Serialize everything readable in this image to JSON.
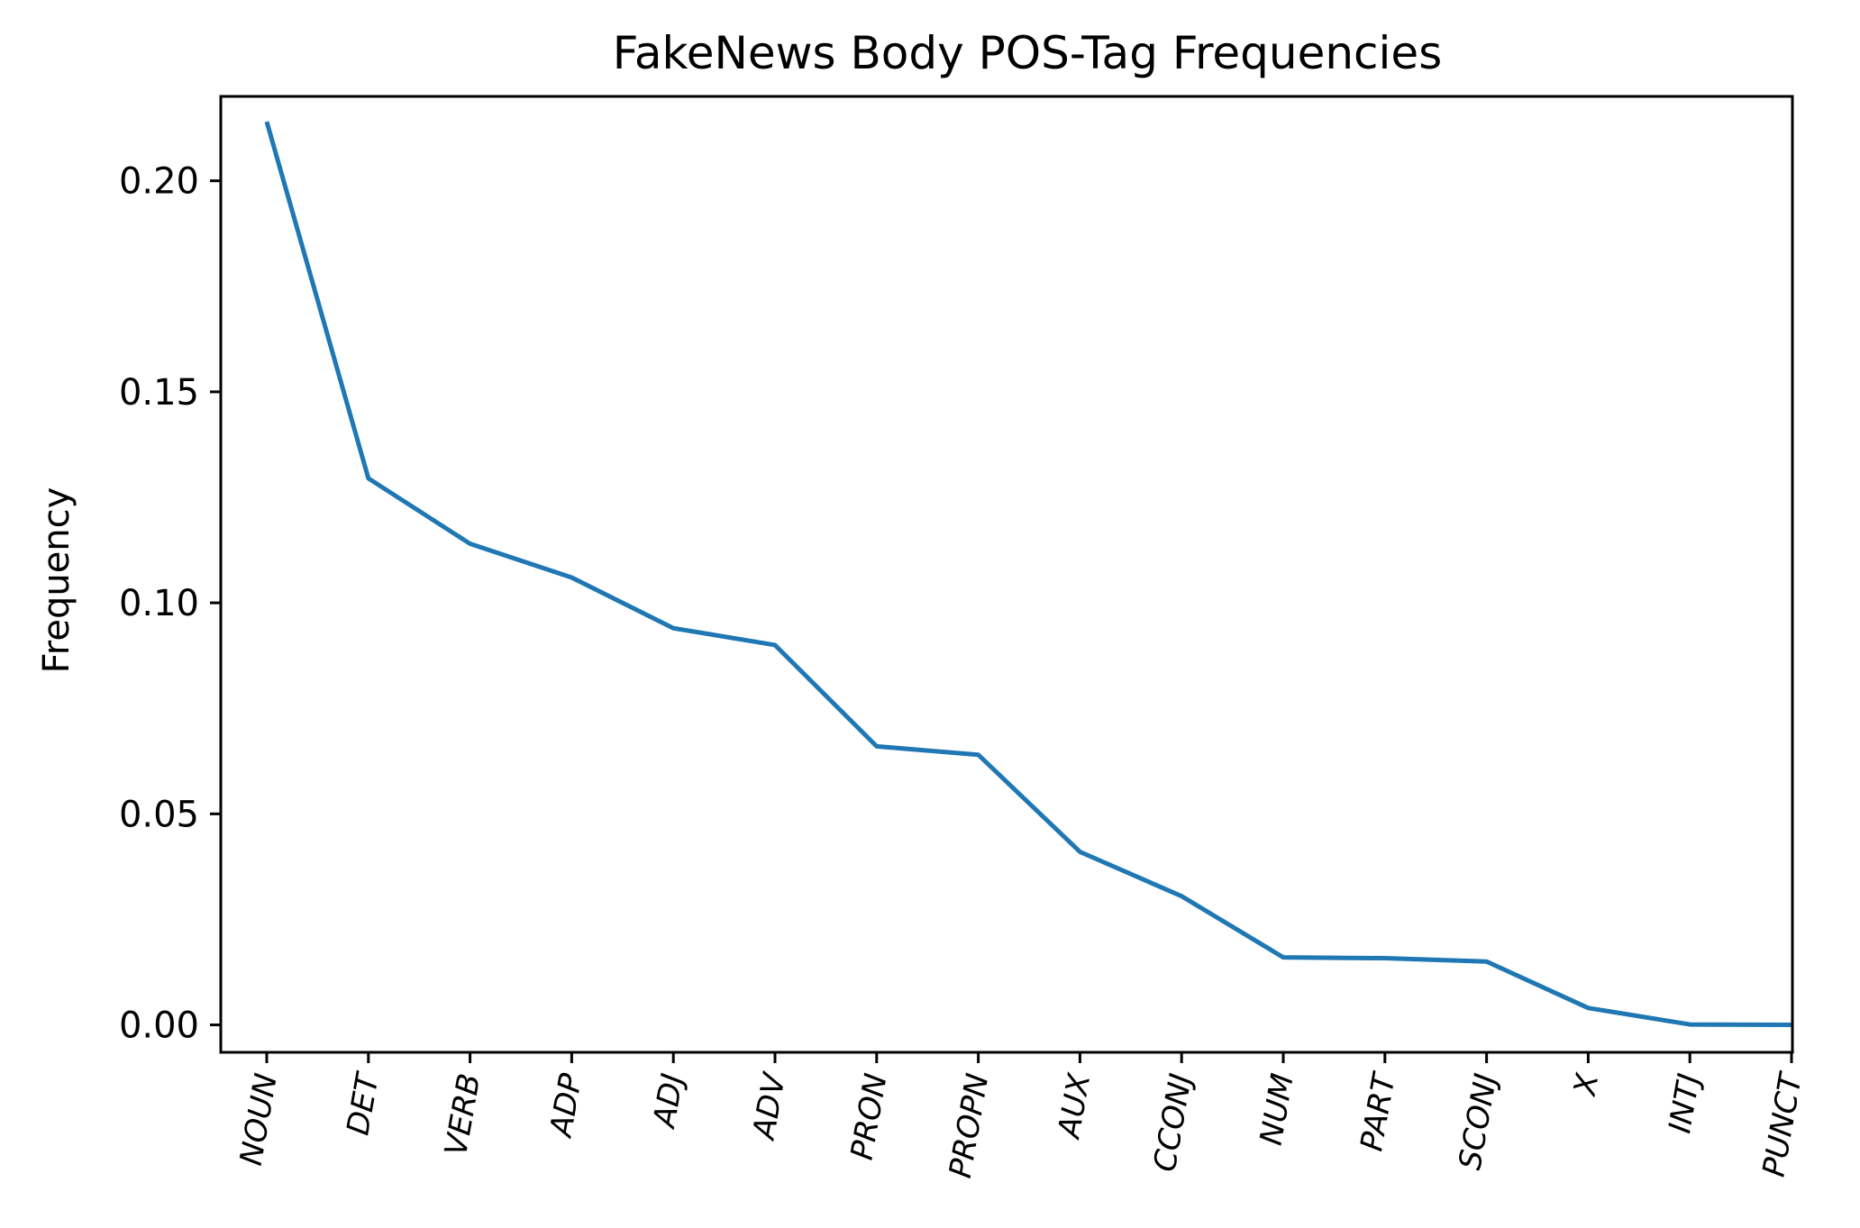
{
  "chart_data": {
    "type": "line",
    "title": "FakeNews Body POS-Tag Frequencies",
    "xlabel": "",
    "ylabel": "Frequency",
    "categories": [
      "NOUN",
      "DET",
      "VERB",
      "ADP",
      "ADJ",
      "ADV",
      "PRON",
      "PROPN",
      "AUX",
      "CCONJ",
      "NUM",
      "PART",
      "SCONJ",
      "X",
      "INTJ",
      "PUNCT"
    ],
    "values": [
      0.214,
      0.1295,
      0.114,
      0.106,
      0.094,
      0.09,
      0.066,
      0.064,
      0.041,
      0.0305,
      0.016,
      0.0158,
      0.015,
      0.004,
      0.0001,
      0.0
    ],
    "ylim": [
      -0.0065,
      0.22
    ],
    "yticks": [
      0.0,
      0.05,
      0.1,
      0.15,
      0.2
    ],
    "ytick_labels": [
      "0.00",
      "0.05",
      "0.10",
      "0.15",
      "0.20"
    ],
    "grid": false,
    "legend": "none",
    "line_color": "#1f77b4",
    "xtick_rotation": -80
  }
}
